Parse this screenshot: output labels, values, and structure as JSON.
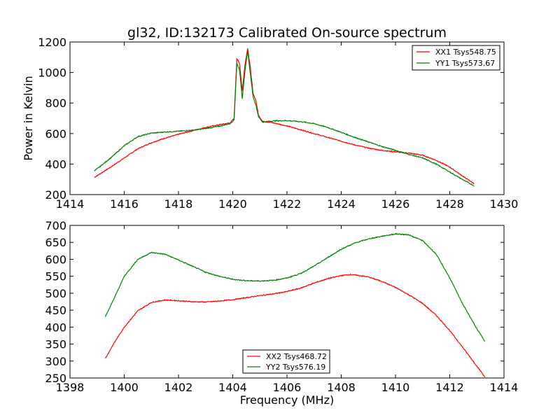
{
  "chart_data": [
    {
      "type": "line",
      "title": "gl32, ID:132173 Calibrated On-source spectrum",
      "xlabel": "",
      "ylabel": "Power in Kelvin",
      "xlim": [
        1414,
        1430
      ],
      "ylim": [
        200,
        1200
      ],
      "xticks": [
        1414,
        1416,
        1418,
        1420,
        1422,
        1424,
        1426,
        1428,
        1430
      ],
      "yticks": [
        200,
        400,
        600,
        800,
        1000,
        1200
      ],
      "legend_position": "top-right",
      "series": [
        {
          "name": "XX1 Tsys548.75",
          "color": "#ff0000",
          "x": [
            1414.9,
            1415.5,
            1416,
            1416.5,
            1417,
            1417.5,
            1418,
            1418.5,
            1419,
            1419.5,
            1419.9,
            1420.05,
            1420.15,
            1420.25,
            1420.35,
            1420.45,
            1420.55,
            1420.65,
            1420.75,
            1420.85,
            1420.95,
            1421.1,
            1421.5,
            1422,
            1422.5,
            1423,
            1423.5,
            1424,
            1424.5,
            1425,
            1425.5,
            1426,
            1426.5,
            1427,
            1427.5,
            1428,
            1428.5,
            1428.9
          ],
          "values": [
            313,
            380,
            440,
            500,
            540,
            570,
            595,
            618,
            640,
            658,
            670,
            700,
            1090,
            1060,
            880,
            1050,
            1160,
            1030,
            860,
            820,
            720,
            680,
            670,
            650,
            625,
            600,
            575,
            550,
            525,
            505,
            490,
            480,
            472,
            458,
            425,
            380,
            318,
            272
          ]
        },
        {
          "name": "YY1 Tsys573.67",
          "color": "#008000",
          "x": [
            1414.9,
            1415.5,
            1416,
            1416.5,
            1417,
            1417.5,
            1418,
            1418.5,
            1419,
            1419.5,
            1419.9,
            1420.05,
            1420.15,
            1420.25,
            1420.35,
            1420.45,
            1420.55,
            1420.65,
            1420.75,
            1420.85,
            1420.95,
            1421.1,
            1421.5,
            1422,
            1422.5,
            1423,
            1423.5,
            1424,
            1424.5,
            1425,
            1425.5,
            1426,
            1426.5,
            1427,
            1427.5,
            1428,
            1428.5,
            1428.9
          ],
          "values": [
            355,
            440,
            520,
            580,
            603,
            610,
            615,
            622,
            633,
            648,
            665,
            690,
            1060,
            1020,
            830,
            1010,
            1140,
            990,
            840,
            790,
            710,
            675,
            683,
            685,
            678,
            665,
            640,
            608,
            575,
            545,
            515,
            490,
            463,
            440,
            400,
            348,
            296,
            258
          ]
        }
      ]
    },
    {
      "type": "line",
      "title": "",
      "xlabel": "Frequency (MHz)",
      "ylabel": "",
      "xlim": [
        1398,
        1414
      ],
      "ylim": [
        250,
        700
      ],
      "xticks": [
        1398,
        1400,
        1402,
        1404,
        1406,
        1408,
        1410,
        1412,
        1414
      ],
      "yticks": [
        250,
        300,
        350,
        400,
        450,
        500,
        550,
        600,
        650,
        700
      ],
      "legend_position": "bottom-center",
      "series": [
        {
          "name": "XX2 Tsys468.72",
          "color": "#ff0000",
          "x": [
            1399.3,
            1399.6,
            1400,
            1400.5,
            1401,
            1401.5,
            1402,
            1402.5,
            1403,
            1403.5,
            1404,
            1404.5,
            1405,
            1405.5,
            1406,
            1406.5,
            1407,
            1407.5,
            1408,
            1408.3,
            1408.5,
            1409,
            1409.5,
            1410,
            1410.5,
            1411,
            1411.5,
            1412,
            1412.5,
            1413,
            1413.3
          ],
          "values": [
            307,
            350,
            400,
            448,
            473,
            480,
            478,
            475,
            474,
            477,
            481,
            487,
            493,
            498,
            505,
            515,
            530,
            543,
            552,
            555,
            554,
            548,
            535,
            517,
            495,
            470,
            435,
            390,
            338,
            285,
            253
          ]
        },
        {
          "name": "YY2 Tsys576.19",
          "color": "#008000",
          "x": [
            1399.3,
            1399.6,
            1400,
            1400.5,
            1401,
            1401.5,
            1402,
            1402.5,
            1403,
            1403.5,
            1404,
            1404.5,
            1405,
            1405.5,
            1406,
            1406.5,
            1407,
            1407.5,
            1408,
            1408.5,
            1409,
            1409.5,
            1410,
            1410.5,
            1411,
            1411.5,
            1412,
            1412.5,
            1413,
            1413.3
          ],
          "values": [
            430,
            480,
            550,
            600,
            620,
            615,
            598,
            580,
            562,
            550,
            541,
            537,
            536,
            538,
            545,
            558,
            580,
            605,
            630,
            648,
            660,
            668,
            675,
            672,
            655,
            615,
            545,
            465,
            395,
            358
          ]
        }
      ]
    }
  ]
}
